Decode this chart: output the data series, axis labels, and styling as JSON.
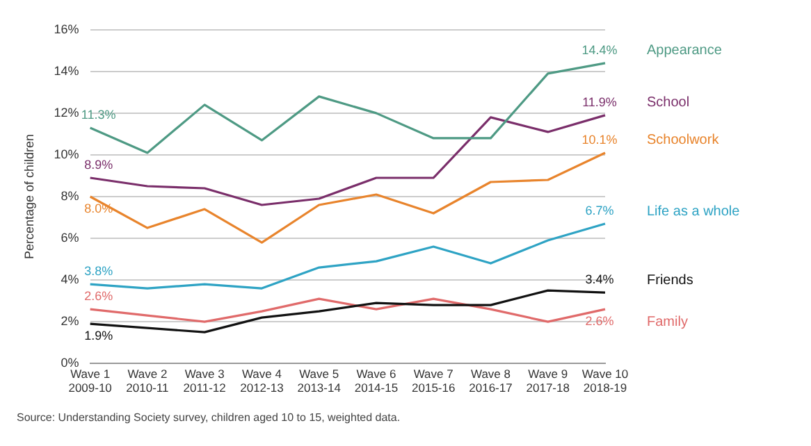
{
  "chart_data": {
    "type": "line",
    "ylabel": "Percentage of children",
    "categories": [
      "Wave 1\n2009-10",
      "Wave 2\n2010-11",
      "Wave 3\n2011-12",
      "Wave 4\n2012-13",
      "Wave 5\n2013-14",
      "Wave 6\n2014-15",
      "Wave 7\n2015-16",
      "Wave 8\n2016-17",
      "Wave 9\n2017-18",
      "Wave 10\n2018-19"
    ],
    "series": [
      {
        "name": "Appearance",
        "color": "#4e9a84",
        "values": [
          11.3,
          10.1,
          12.4,
          10.7,
          12.8,
          12.0,
          10.8,
          10.8,
          13.9,
          14.4
        ],
        "value_labels": [
          "11.3%",
          null,
          null,
          null,
          null,
          null,
          null,
          null,
          null,
          "14.4%"
        ]
      },
      {
        "name": "School",
        "color": "#7a2e6a",
        "values": [
          8.9,
          8.5,
          8.4,
          7.6,
          7.9,
          8.9,
          8.9,
          11.8,
          11.1,
          11.9
        ],
        "value_labels": [
          "8.9%",
          null,
          null,
          null,
          null,
          null,
          null,
          null,
          null,
          "11.9%"
        ]
      },
      {
        "name": "Schoolwork",
        "color": "#e8842c",
        "values": [
          8.0,
          6.5,
          7.4,
          5.8,
          7.6,
          8.1,
          7.2,
          8.7,
          8.8,
          10.1
        ],
        "value_labels": [
          "8.0%",
          null,
          null,
          null,
          null,
          null,
          null,
          null,
          null,
          "10.1%"
        ]
      },
      {
        "name": "Life as a whole",
        "color": "#2ea3c4",
        "values": [
          3.8,
          3.6,
          3.8,
          3.6,
          4.6,
          4.9,
          5.6,
          4.8,
          5.9,
          6.7
        ],
        "value_labels": [
          "3.8%",
          null,
          null,
          null,
          null,
          null,
          null,
          null,
          null,
          "6.7%"
        ]
      },
      {
        "name": "Friends",
        "color": "#111111",
        "values": [
          1.9,
          1.7,
          1.5,
          2.2,
          2.5,
          2.9,
          2.8,
          2.8,
          3.5,
          3.4
        ],
        "value_labels": [
          "1.9%",
          null,
          null,
          null,
          null,
          null,
          null,
          null,
          null,
          "3.4%"
        ]
      },
      {
        "name": "Family",
        "color": "#e06a6a",
        "values": [
          2.6,
          2.3,
          2.0,
          2.5,
          3.1,
          2.6,
          3.1,
          2.6,
          2.0,
          2.6
        ],
        "value_labels": [
          "2.6%",
          null,
          null,
          null,
          null,
          null,
          null,
          null,
          null,
          "2.6%"
        ]
      }
    ],
    "ylim": [
      0,
      16
    ],
    "yticks": [
      {
        "value": 0,
        "label": "0%"
      },
      {
        "value": 2,
        "label": "2%"
      },
      {
        "value": 4,
        "label": "4%"
      },
      {
        "value": 6,
        "label": "6%"
      },
      {
        "value": 8,
        "label": "8%"
      },
      {
        "value": 10,
        "label": "10%"
      },
      {
        "value": 12,
        "label": "12%"
      },
      {
        "value": 14,
        "label": "14%"
      },
      {
        "value": 16,
        "label": "16%"
      }
    ],
    "grid": "y",
    "marker": "none",
    "line_style": "solid",
    "annotations": [
      "Source: Understanding Society survey, children aged 10 to 15, weighted data."
    ]
  }
}
